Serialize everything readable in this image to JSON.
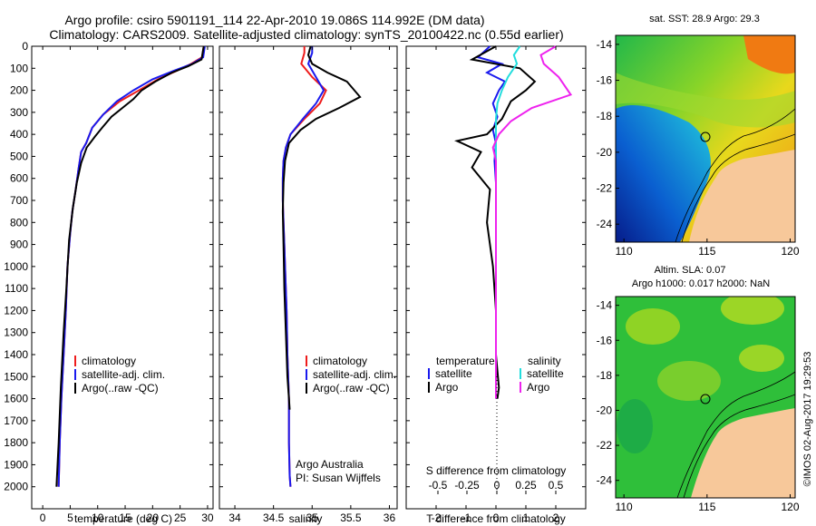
{
  "header": {
    "line1": "Argo profile: csiro 5901191_114 22-Apr-2010 19.086S 114.992E (DM data)",
    "line2": "Climatology: CARS2009. Satellite-adjusted climatology: synTS_20100422.nc (0.55d earlier)"
  },
  "colors": {
    "climatology": "#ee1c1c",
    "satellite": "#1a1aee",
    "argo": "#000000",
    "sal_satellite": "#22dddd",
    "sal_argo": "#ee22ee",
    "land": "#f7c89a"
  },
  "legend": {
    "climatology": "climatology",
    "satellite_adj": "satellite-adj. clim.",
    "argo": "Argo(..raw -QC)",
    "temperature": "temperature",
    "salinity": "salinity",
    "satellite": "satellite",
    "argo_short": "Argo"
  },
  "credits": {
    "org": "Argo Australia",
    "pi": "PI: Susan Wijffels",
    "stamp": "©IMOS 02-Aug-2017 19:29:53"
  },
  "maps": {
    "sst_title": "sat. SST: 28.9 Argo: 29.3",
    "sla_title1": "Altim. SLA: 0.07",
    "sla_title2": "Argo h1000: 0.017 h2000: NaN",
    "x_ticks": [
      "110",
      "115",
      "120"
    ],
    "y_ticks": [
      "-14",
      "-16",
      "-18",
      "-20",
      "-22",
      "-24"
    ],
    "float_position": {
      "lon": 114.992,
      "lat": -19.086
    }
  },
  "chart_data": [
    {
      "type": "line",
      "xlabel": "temperature (deg C)",
      "ylabel": "",
      "xlim": [
        -2,
        31
      ],
      "ylim": [
        2100,
        0
      ],
      "x_ticks": [
        0,
        5,
        10,
        15,
        20,
        25,
        30
      ],
      "y_ticks": [
        0,
        100,
        200,
        300,
        400,
        500,
        600,
        700,
        800,
        900,
        1000,
        1100,
        1200,
        1300,
        1400,
        1500,
        1600,
        1700,
        1800,
        1900,
        2000
      ],
      "series": [
        {
          "name": "climatology",
          "color": "climatology",
          "x": [
            29.3,
            29.0,
            27.0,
            24.5,
            21.0,
            17.5,
            14.0,
            11.0,
            9.0,
            7.9,
            7.0,
            6.5,
            6.0,
            5.4,
            5.0,
            4.5,
            4.2,
            3.8,
            3.4,
            3.1,
            2.9
          ],
          "y": [
            0,
            50,
            80,
            110,
            150,
            200,
            250,
            310,
            370,
            440,
            480,
            560,
            650,
            750,
            850,
            1000,
            1200,
            1400,
            1600,
            1800,
            2000
          ]
        },
        {
          "name": "satellite-adj. clim.",
          "color": "satellite",
          "x": [
            29.5,
            29.2,
            27.2,
            24.0,
            20.0,
            16.5,
            13.5,
            11.0,
            9.0,
            7.9,
            7.0,
            6.5,
            6.0,
            5.4,
            5.0,
            4.5,
            4.2,
            3.8,
            3.4,
            3.1,
            2.9
          ],
          "y": [
            0,
            50,
            80,
            110,
            150,
            200,
            250,
            310,
            370,
            440,
            480,
            560,
            650,
            750,
            850,
            1000,
            1200,
            1400,
            1600,
            1800,
            2000
          ]
        },
        {
          "name": "Argo(..raw -QC)",
          "color": "argo",
          "x": [
            29.3,
            29.1,
            28.9,
            26.5,
            23.5,
            20.5,
            18.0,
            16.5,
            14.5,
            12.5,
            10.8,
            9.5,
            8.0,
            7.0,
            6.2,
            5.5,
            4.8,
            4.3,
            3.8,
            3.3,
            2.9,
            2.5
          ],
          "y": [
            0,
            30,
            60,
            90,
            120,
            160,
            200,
            240,
            280,
            320,
            370,
            410,
            460,
            530,
            620,
            730,
            880,
            1100,
            1300,
            1550,
            1800,
            2000
          ]
        }
      ]
    },
    {
      "type": "line",
      "xlabel": "salinity",
      "ylabel": "",
      "xlim": [
        33.8,
        36.1
      ],
      "ylim": [
        2100,
        0
      ],
      "x_ticks": [
        34,
        34.5,
        35,
        35.5,
        36
      ],
      "series": [
        {
          "name": "climatology",
          "color": "climatology",
          "x": [
            34.9,
            34.9,
            34.86,
            35.0,
            35.18,
            35.1,
            34.9,
            34.72,
            34.66,
            34.63,
            34.62,
            34.62,
            34.63,
            34.64,
            34.65,
            34.67,
            34.68,
            34.7,
            34.7,
            34.71,
            34.72
          ],
          "y": [
            0,
            30,
            80,
            140,
            200,
            260,
            330,
            400,
            460,
            520,
            600,
            700,
            800,
            900,
            1000,
            1200,
            1400,
            1600,
            1800,
            1950,
            2000
          ]
        },
        {
          "name": "satellite-adj. clim.",
          "color": "satellite",
          "x": [
            35.0,
            35.0,
            34.95,
            35.05,
            35.15,
            35.05,
            34.88,
            34.72,
            34.66,
            34.63,
            34.62,
            34.62,
            34.63,
            34.64,
            34.65,
            34.67,
            34.68,
            34.7,
            34.7,
            34.71,
            34.72
          ],
          "y": [
            0,
            30,
            80,
            140,
            200,
            260,
            330,
            400,
            460,
            520,
            600,
            700,
            800,
            900,
            1000,
            1200,
            1400,
            1600,
            1800,
            1950,
            2000
          ]
        },
        {
          "name": "Argo(..raw -QC)",
          "color": "argo",
          "x": [
            34.98,
            34.95,
            35.0,
            35.2,
            35.45,
            35.62,
            35.35,
            35.05,
            34.85,
            34.7,
            34.65,
            34.63,
            34.62,
            34.63,
            34.64,
            34.66,
            34.68,
            34.7,
            34.71
          ],
          "y": [
            0,
            40,
            80,
            120,
            160,
            230,
            280,
            330,
            380,
            440,
            520,
            620,
            750,
            900,
            1100,
            1300,
            1500,
            1600,
            1650
          ]
        }
      ],
      "annotations": [
        "Argo Australia",
        "PI: Susan Wijffels"
      ]
    },
    {
      "type": "line",
      "xlabel": "T difference from climatology",
      "x2label": "S difference from climatology",
      "ylabel": "",
      "xlim": [
        -3,
        3
      ],
      "ylim": [
        2100,
        0
      ],
      "x_ticks": [
        -2,
        -1,
        0,
        1,
        2
      ],
      "x2_ticks": [
        "-0.5",
        "-0.25",
        "0",
        "0.25",
        "0.5"
      ],
      "series": [
        {
          "name": "temperature satellite",
          "color": "satellite",
          "x": [
            -0.2,
            -0.6,
            0.2,
            -0.3,
            0.3,
            0.1,
            -0.1,
            0.05,
            -0.1,
            0.0,
            -0.05,
            0.0,
            0.0,
            0.0,
            0.0,
            0.0,
            0.0,
            0.0
          ],
          "y": [
            0,
            50,
            80,
            120,
            160,
            200,
            260,
            320,
            380,
            440,
            520,
            620,
            800,
            1000,
            1200,
            1400,
            1550,
            1600
          ]
        },
        {
          "name": "temperature Argo",
          "color": "argo",
          "x": [
            0.0,
            -0.8,
            0.8,
            1.3,
            1.0,
            0.5,
            0.2,
            -0.3,
            -1.3,
            -0.5,
            -0.8,
            -0.2,
            -0.3,
            -0.1,
            0.0,
            0.0,
            0.1,
            0.05
          ],
          "y": [
            0,
            60,
            100,
            160,
            200,
            250,
            330,
            400,
            430,
            480,
            550,
            650,
            800,
            1000,
            1200,
            1400,
            1550,
            1600
          ]
        },
        {
          "name": "salinity satellite",
          "color": "sal_satellite",
          "x": [
            0.8,
            0.6,
            0.7,
            0.4,
            0.2,
            0.05,
            0.0,
            0.0,
            0.0,
            0.0,
            0.0,
            0.0,
            0.0,
            0.0
          ],
          "y": [
            0,
            40,
            80,
            140,
            200,
            260,
            330,
            400,
            520,
            700,
            900,
            1200,
            1400,
            1600
          ]
        },
        {
          "name": "salinity Argo",
          "color": "sal_argo",
          "x": [
            2.0,
            1.5,
            1.6,
            2.1,
            2.5,
            1.2,
            0.5,
            0.1,
            -0.1,
            0.0,
            0.0,
            0.0,
            0.0,
            0.0,
            0.0
          ],
          "y": [
            0,
            40,
            80,
            140,
            220,
            280,
            340,
            400,
            460,
            520,
            700,
            900,
            1200,
            1400,
            1600
          ]
        }
      ]
    }
  ]
}
